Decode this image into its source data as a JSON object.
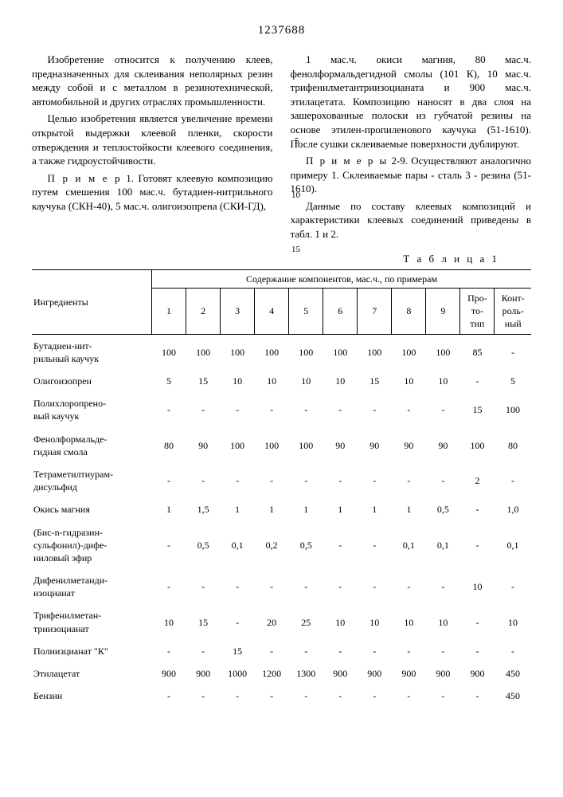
{
  "patent_number": "1237688",
  "line_markers": {
    "l5": "5",
    "l10": "10",
    "l15": "15"
  },
  "left_column": {
    "p1": "Изобретение относится к получению клеев, предназначенных для склеивания неполярных резин между собой и с металлом в резинотехнической, автомобильной и других отраслях промышленности.",
    "p2": "Целью изобретения является увеличение времени открытой выдержки клеевой пленки, скорости отверждения и теплостойкости клеевого соединения, а также гидроустойчивости.",
    "p3_lead": "П р и м е р",
    "p3": "1. Готовят клеевую композицию путем смешения 100 мас.ч. бутадиен-нитрильного каучука (СКН-40), 5 мас.ч. олигоизопрена (СКИ-ГД),"
  },
  "right_column": {
    "p1": "1 мас.ч. окиси магния, 80 мас.ч. фенолформальдегидной смолы (101 К), 10 мас.ч. трифенилметантриизоцианата и 900 мас.ч. этилацетата. Композицию наносят в два слоя на зашерохованные полоски из губчатой резины на основе этилен-пропиленового каучука (51-1610). После сушки склеиваемые поверхности дублируют.",
    "p2_lead": "П р и м е р ы",
    "p2": "2-9. Осуществляют аналогично примеру 1. Склеиваемые пары - сталь 3 - резина (51-1610).",
    "p3": "Данные по составу клеевых композиций и характеристики клеевых соединений приведены в табл. 1 и 2."
  },
  "table_caption": "Т а б л и ц а 1",
  "table": {
    "header_ingredient": "Ингредиенты",
    "header_content": "Содержание компонентов, мас.ч., по примерам",
    "columns": [
      "1",
      "2",
      "3",
      "4",
      "5",
      "6",
      "7",
      "8",
      "9",
      "Про-\nто-\nтип",
      "Конт-\nроль-\nный"
    ],
    "rows": [
      {
        "name": "Бутадиен-нит-\nрильный каучук",
        "v": [
          "100",
          "100",
          "100",
          "100",
          "100",
          "100",
          "100",
          "100",
          "100",
          "85",
          "-"
        ]
      },
      {
        "name": "Олигоизопрен",
        "v": [
          "5",
          "15",
          "10",
          "10",
          "10",
          "10",
          "15",
          "10",
          "10",
          "-",
          "5"
        ]
      },
      {
        "name": "Полихлоропрено-\nвый каучук",
        "v": [
          "-",
          "-",
          "-",
          "-",
          "-",
          "-",
          "-",
          "-",
          "-",
          "15",
          "100"
        ]
      },
      {
        "name": "Фенолформальде-\nгидная смола",
        "v": [
          "80",
          "90",
          "100",
          "100",
          "100",
          "90",
          "90",
          "90",
          "90",
          "100",
          "80"
        ]
      },
      {
        "name": "Тетраметилтиурам-\nдисульфид",
        "v": [
          "-",
          "-",
          "-",
          "-",
          "-",
          "-",
          "-",
          "-",
          "-",
          "2",
          "-"
        ]
      },
      {
        "name": "Окись магния",
        "v": [
          "1",
          "1,5",
          "1",
          "1",
          "1",
          "1",
          "1",
          "1",
          "0,5",
          "-",
          "1,0"
        ]
      },
      {
        "name": "(Бис-n-гидразин-\nсульфонил)-дифе-\nниловый эфир",
        "v": [
          "-",
          "0,5",
          "0,1",
          "0,2",
          "0,5",
          "-",
          "-",
          "0,1",
          "0,1",
          "-",
          "0,1"
        ]
      },
      {
        "name": "Дифенилметанди-\nизоцианат",
        "v": [
          "-",
          "-",
          "-",
          "-",
          "-",
          "-",
          "-",
          "-",
          "-",
          "10",
          "-"
        ]
      },
      {
        "name": "Трифенилметан-\nтриизоцианат",
        "v": [
          "10",
          "15",
          "-",
          "20",
          "25",
          "10",
          "10",
          "10",
          "10",
          "-",
          "10"
        ]
      },
      {
        "name": "Полиизцианат \"К\"",
        "v": [
          "-",
          "-",
          "15",
          "-",
          "-",
          "-",
          "-",
          "-",
          "-",
          "-",
          "-"
        ]
      },
      {
        "name": "Этилацетат",
        "v": [
          "900",
          "900",
          "1000",
          "1200",
          "1300",
          "900",
          "900",
          "900",
          "900",
          "900",
          "450"
        ]
      },
      {
        "name": "Бензин",
        "v": [
          "-",
          "-",
          "-",
          "-",
          "-",
          "-",
          "-",
          "-",
          "-",
          "-",
          "450"
        ]
      }
    ]
  }
}
